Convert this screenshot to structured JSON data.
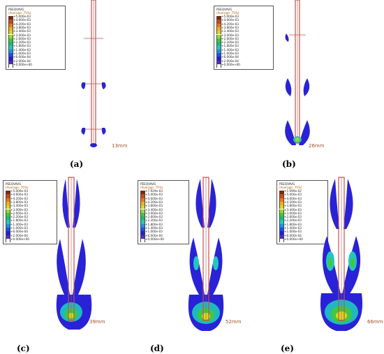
{
  "panels": [
    {
      "label": "(a)",
      "depth": "13mm",
      "legend": {
        "title": "PEEQVAVG",
        "average": "(Average: 75%)",
        "levels": [
          "+5.000e-03",
          "+4.600e-03",
          "+4.200e-03",
          "+3.800e-03",
          "+3.400e-03",
          "+3.000e-03",
          "+2.600e-03",
          "+2.200e-03",
          "+1.800e-03",
          "+1.400e-03",
          "+1.000e-03",
          "+6.000e-04",
          "+2.000e-04",
          "+0.000e+00"
        ]
      }
    },
    {
      "label": "(b)",
      "depth": "26mm",
      "legend": {
        "title": "PEEQVAVG",
        "average": "(Average: 75%)",
        "levels": [
          "+5.000e-03",
          "+4.600e-03",
          "+4.200e-03",
          "+3.800e-03",
          "+3.400e-03",
          "+3.000e-03",
          "+2.600e-03",
          "+2.200e-03",
          "+1.800e-03",
          "+1.400e-03",
          "+1.000e-03",
          "+6.000e-04",
          "+2.000e-04",
          "+0.000e+00"
        ]
      }
    },
    {
      "label": "(c)",
      "depth": "39mm",
      "legend": {
        "title": "PEEQVAVG",
        "average": "(Average: 75%)",
        "levels": [
          "+5.000e-03",
          "+4.600e-03",
          "+4.200e-03",
          "+3.800e-03",
          "+3.400e-03",
          "+3.000e-03",
          "+2.600e-03",
          "+2.200e-03",
          "+1.800e-03",
          "+1.400e-03",
          "+1.000e-03",
          "+6.000e-04",
          "+2.000e-04",
          "+0.000e+00"
        ]
      }
    },
    {
      "label": "(d)",
      "depth": "52mm",
      "legend": {
        "title": "PEEQVAVG",
        "average": "(Average: 75%)",
        "levels": [
          "+7.929e-03",
          "+5.000e-03",
          "+4.600e-03",
          "+4.200e-03",
          "+3.800e-03",
          "+3.400e-03",
          "+3.000e-03",
          "+2.600e-03",
          "+2.200e-03",
          "+1.800e-03",
          "+1.400e-03",
          "+1.000e-03",
          "+6.000e-04",
          "+0.000e+00"
        ]
      }
    },
    {
      "label": "(e)",
      "depth": "66mm",
      "legend": {
        "title": "PEEQVAVG",
        "average": "(Average: 75%)",
        "levels": [
          "+1.099e-02",
          "+5.000e-03",
          "+4.600e-03",
          "+4.200e-03",
          "+3.800e-03",
          "+3.400e-03",
          "+3.000e-03",
          "+2.600e-03",
          "+2.200e-03",
          "+1.800e-03",
          "+1.400e-03",
          "+1.000e-03",
          "+6.000e-04",
          "+0.000e+00"
        ]
      }
    }
  ],
  "colors": {
    "scale": [
      "#7a2a10",
      "#c84a1a",
      "#e87a1a",
      "#f0b020",
      "#d8d820",
      "#9ad830",
      "#40c840",
      "#20b878",
      "#20c8c0",
      "#2090e0",
      "#2050e0",
      "#2020d8",
      "#5030b0",
      "#ffffff"
    ],
    "rod": "#c0504d",
    "plastic_zone": "#2a22d6"
  }
}
